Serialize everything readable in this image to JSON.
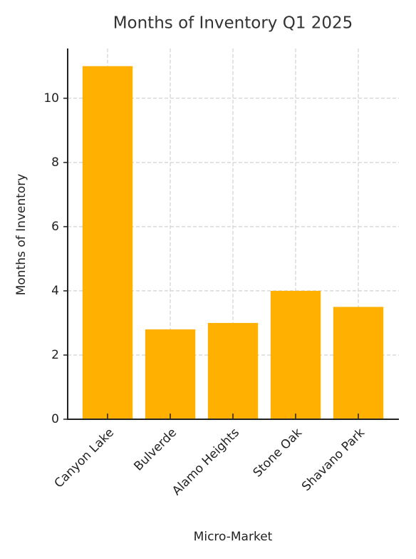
{
  "chart_data": {
    "type": "bar",
    "title": "Months of Inventory Q1 2025",
    "x_label": "Micro-Market",
    "y_label": "Months of Inventory",
    "categories": [
      "Canyon Lake",
      "Bulverde",
      "Alamo Heights",
      "Stone Oak",
      "Shavano Park"
    ],
    "values": [
      11,
      2.8,
      3,
      4,
      3.5
    ],
    "color": "#ffb000",
    "ylim": [
      0,
      11.55
    ],
    "yticks": [
      0,
      2,
      4,
      6,
      8,
      10
    ],
    "grid": true
  }
}
